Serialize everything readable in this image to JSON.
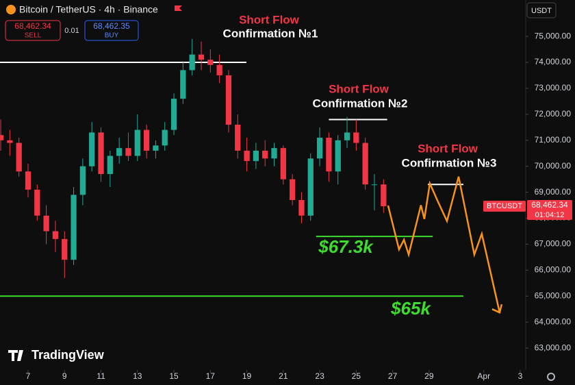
{
  "header": {
    "symbol": "Bitcoin / TetherUS · 4h · Binance",
    "sell_price": "68,462.34",
    "sell_label": "SELL",
    "spread": "0.01",
    "buy_price": "68,462.35",
    "buy_label": "BUY",
    "currency": "USDT",
    "brand": "TradingView"
  },
  "chart_data": {
    "type": "candlestick",
    "x": [
      5.5,
      6,
      6.5,
      7,
      7.5,
      8,
      8.5,
      9,
      9.5,
      10,
      10.5,
      11,
      11.5,
      12,
      12.5,
      13,
      13.5,
      14,
      14.5,
      15,
      15.5,
      16,
      16.5,
      17,
      17.5,
      18,
      18.5,
      19,
      19.5,
      20,
      20.5,
      21,
      21.5,
      22,
      22.5,
      23,
      23.5,
      24,
      24.5,
      25,
      25.5,
      26,
      26.5
    ],
    "open": [
      71200,
      71000,
      70900,
      69800,
      69100,
      68100,
      67500,
      67200,
      66400,
      68900,
      70000,
      71300,
      69700,
      70400,
      70700,
      70400,
      71400,
      70600,
      70800,
      71400,
      72600,
      73700,
      74300,
      74100,
      73900,
      73500,
      71600,
      70600,
      70200,
      70600,
      70300,
      70700,
      69500,
      68700,
      68100,
      70300,
      71100,
      69800,
      71000,
      71300,
      70900,
      69300,
      69300
    ],
    "high": [
      71800,
      71400,
      71100,
      70100,
      69300,
      68500,
      67900,
      67500,
      69200,
      70300,
      71700,
      71500,
      70600,
      71100,
      71300,
      72000,
      71600,
      71000,
      71700,
      72800,
      74000,
      74900,
      74800,
      74500,
      74300,
      73700,
      72000,
      71100,
      70900,
      71000,
      70900,
      70800,
      69700,
      69000,
      70500,
      71500,
      71300,
      71200,
      71900,
      71800,
      71100,
      69700,
      69500
    ],
    "low": [
      70600,
      70400,
      69600,
      68800,
      67900,
      67000,
      66700,
      65700,
      66200,
      68500,
      69800,
      69400,
      69200,
      70100,
      70200,
      70200,
      70300,
      70300,
      70600,
      71200,
      72400,
      73500,
      73700,
      73600,
      73200,
      71300,
      70300,
      69800,
      69900,
      70000,
      70000,
      69300,
      68500,
      67800,
      67900,
      70000,
      69400,
      69300,
      70700,
      70600,
      69100,
      68300,
      68200
    ],
    "close": [
      71000,
      70900,
      69800,
      69100,
      68100,
      67500,
      67200,
      66400,
      68900,
      70000,
      71300,
      69700,
      70400,
      70700,
      70400,
      71400,
      70600,
      70800,
      71400,
      72600,
      73700,
      74300,
      74100,
      73900,
      73500,
      71600,
      70600,
      70200,
      70600,
      70300,
      70700,
      69500,
      68700,
      68100,
      70300,
      71100,
      69800,
      71000,
      71300,
      70900,
      69300,
      69300,
      68462.34
    ],
    "up_color": "#22ab94",
    "down_color": "#f23645",
    "projection": {
      "color": "#f7931a",
      "x": [
        26.75,
        27.35,
        27.62,
        27.88,
        28.55,
        28.74,
        29.04,
        29.49,
        29.98,
        30.62,
        31.48,
        31.89,
        32.87
      ],
      "values": [
        68486,
        66800,
        67170,
        66600,
        68500,
        67970,
        69340,
        68630,
        67890,
        69600,
        66600,
        67400,
        64370
      ]
    },
    "levels": [
      {
        "value": 74000,
        "x": [
          5.46,
          18.98
        ],
        "color": "#ffffff"
      },
      {
        "value": 71800,
        "x": [
          23.5,
          26.7
        ],
        "color": "#ffffff"
      },
      {
        "value": 69300,
        "x": [
          28.93,
          30.88
        ],
        "color": "#ffffff"
      },
      {
        "value": 67300,
        "x": [
          22.8,
          29.2
        ],
        "color": "#3ddc2f"
      },
      {
        "value": 65000,
        "x": [
          5.46,
          30.88
        ],
        "color": "#3ddc2f"
      }
    ],
    "annotations": [
      {
        "text": "Short Flow",
        "color": "#f23645"
      },
      {
        "text": "Confirmation №1",
        "color": "#ffffff"
      },
      {
        "text": "Short Flow",
        "color": "#f23645"
      },
      {
        "text": "Confirmation №2",
        "color": "#ffffff"
      },
      {
        "text": "Short Flow",
        "color": "#f23645"
      },
      {
        "text": "Confirmation №3",
        "color": "#ffffff"
      },
      {
        "text": "$67.3k",
        "color": "#3ddc2f"
      },
      {
        "text": "$65k",
        "color": "#3ddc2f"
      }
    ],
    "price_tag": {
      "symbol": "BTCUSDT",
      "value": 68462.34,
      "label": "68,462.34",
      "countdown": "01:04:12",
      "color": "#f23645"
    },
    "xlim": [
      5.46,
      34.3
    ],
    "xticks": [
      7,
      9,
      11,
      13,
      15,
      17,
      19,
      21,
      23,
      25,
      27,
      29,
      {
        "value": 32,
        "label": "Apr"
      },
      {
        "value": 34,
        "label": "3"
      }
    ],
    "ylim": [
      62160,
      76400
    ],
    "yticks": [
      {
        "value": 63000,
        "label": "63,000.00"
      },
      {
        "value": 64000,
        "label": "64,000.00"
      },
      {
        "value": 65000,
        "label": "65,000.00"
      },
      {
        "value": 66000,
        "label": "66,000.00"
      },
      {
        "value": 67000,
        "label": "67,000.00"
      },
      {
        "value": 68000,
        "label": "68,000.00"
      },
      {
        "value": 69000,
        "label": "69,000.00"
      },
      {
        "value": 70000,
        "label": "70,000.00"
      },
      {
        "value": 71000,
        "label": "71,000.00"
      },
      {
        "value": 72000,
        "label": "72,000.00"
      },
      {
        "value": 73000,
        "label": "73,000.00"
      },
      {
        "value": 74000,
        "label": "74,000.00"
      },
      {
        "value": 75000,
        "label": "75,000.00"
      }
    ],
    "grid": false
  }
}
